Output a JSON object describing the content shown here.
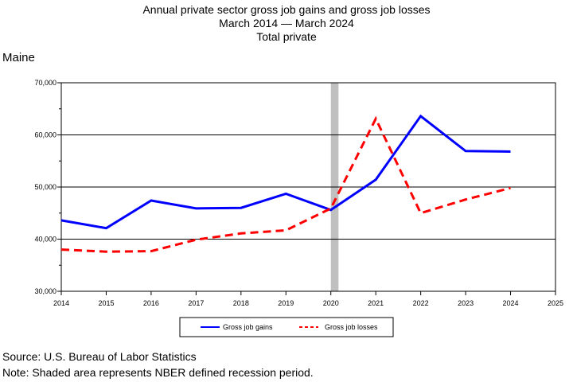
{
  "title_lines": [
    "Annual private sector gross job gains and gross job losses",
    "March 2014 — March 2024",
    "Total private"
  ],
  "region": "Maine",
  "footer": {
    "source": "Source: U.S. Bureau of Labor Statistics",
    "note": "Note: Shaded area represents NBER defined recession period."
  },
  "chart_data": {
    "type": "line",
    "x": [
      2014,
      2015,
      2016,
      2017,
      2018,
      2019,
      2020,
      2021,
      2022,
      2023,
      2024
    ],
    "x_ticks": [
      "2014",
      "2015",
      "2016",
      "2017",
      "2018",
      "2019",
      "2020",
      "2021",
      "2022",
      "2023",
      "2024",
      "2025"
    ],
    "x_tick_values": [
      2014,
      2015,
      2016,
      2017,
      2018,
      2019,
      2020,
      2021,
      2022,
      2023,
      2024,
      2025
    ],
    "xlim": [
      2014,
      2025
    ],
    "ylim": [
      30000,
      70000
    ],
    "y_ticks": [
      "30,000",
      "40,000",
      "50,000",
      "60,000",
      "70,000"
    ],
    "y_tick_values": [
      30000,
      40000,
      50000,
      60000,
      70000
    ],
    "y_minor_step": 5000,
    "grid": "horizontal major",
    "legend_position": "bottom-center",
    "recession": [
      2020,
      2020.17
    ],
    "recession_color": "#c0c0c0",
    "series": [
      {
        "name": "Gross job gains",
        "color": "#0000ff",
        "dash": "solid",
        "values": [
          43600,
          42100,
          47400,
          45900,
          46000,
          48700,
          45600,
          51400,
          63600,
          56900,
          56800
        ]
      },
      {
        "name": "Gross job losses",
        "color": "#ff0000",
        "dash": "dashed",
        "values": [
          38000,
          37600,
          37700,
          39900,
          41100,
          41700,
          45900,
          63100,
          45000,
          47600,
          49800
        ]
      }
    ]
  }
}
